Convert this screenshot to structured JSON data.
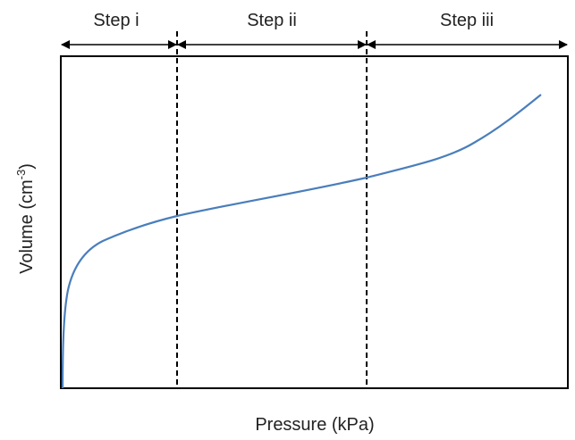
{
  "steps": [
    {
      "label": "Step i"
    },
    {
      "label": "Step ii"
    },
    {
      "label": "Step iii"
    }
  ],
  "x_axis": {
    "label": "Pressure (kPa)"
  },
  "y_axis": {
    "label": "Volume (cm",
    "superscript": "-3",
    "suffix": ")"
  }
}
